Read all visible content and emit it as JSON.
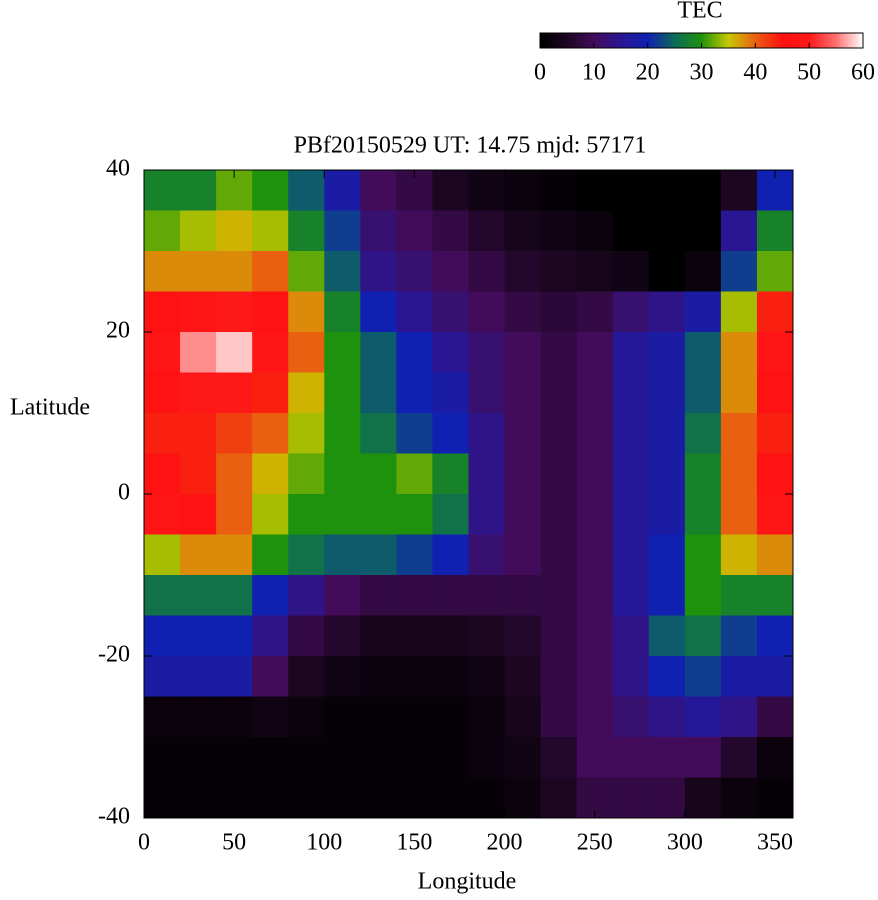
{
  "chart_data": {
    "type": "heatmap",
    "title": "PBf20150529  UT: 14.75  mjd: 57171",
    "x_label": "Longitude",
    "y_label": "Latitude",
    "colorbar_label": "TEC",
    "x": [
      10,
      30,
      50,
      70,
      90,
      110,
      130,
      150,
      170,
      190,
      210,
      230,
      250,
      270,
      290,
      310,
      330,
      350
    ],
    "y": [
      37.5,
      32.5,
      27.5,
      22.5,
      17.5,
      12.5,
      7.5,
      2.5,
      -2.5,
      -7.5,
      -12.5,
      -17.5,
      -22.5,
      -27.5,
      -32.5,
      -37.5
    ],
    "z": [
      [
        28,
        28,
        32,
        30,
        24,
        18,
        10,
        8,
        5,
        3,
        2,
        1,
        0,
        0,
        0,
        0,
        5,
        20
      ],
      [
        32,
        34,
        36,
        34,
        28,
        22,
        12,
        10,
        8,
        6,
        4,
        3,
        2,
        0,
        0,
        0,
        15,
        28
      ],
      [
        38,
        38,
        38,
        40,
        32,
        24,
        14,
        12,
        10,
        8,
        6,
        5,
        4,
        3,
        0,
        2,
        22,
        32
      ],
      [
        46,
        48,
        50,
        46,
        38,
        28,
        20,
        15,
        12,
        10,
        8,
        7,
        8,
        12,
        14,
        18,
        34,
        44
      ],
      [
        48,
        56,
        58,
        48,
        40,
        30,
        24,
        20,
        15,
        12,
        10,
        8,
        10,
        16,
        18,
        24,
        38,
        48
      ],
      [
        46,
        50,
        50,
        44,
        36,
        30,
        24,
        20,
        18,
        12,
        10,
        8,
        10,
        16,
        18,
        24,
        38,
        46
      ],
      [
        44,
        44,
        42,
        40,
        34,
        30,
        26,
        22,
        20,
        14,
        10,
        8,
        10,
        16,
        18,
        26,
        40,
        44
      ],
      [
        46,
        44,
        40,
        36,
        32,
        30,
        30,
        32,
        28,
        14,
        10,
        8,
        10,
        16,
        18,
        28,
        40,
        46
      ],
      [
        48,
        46,
        40,
        34,
        30,
        30,
        30,
        30,
        26,
        14,
        10,
        8,
        10,
        16,
        18,
        28,
        40,
        48
      ],
      [
        34,
        38,
        38,
        30,
        26,
        24,
        24,
        22,
        20,
        12,
        10,
        8,
        10,
        16,
        20,
        30,
        36,
        38
      ],
      [
        26,
        26,
        26,
        20,
        14,
        10,
        8,
        8,
        8,
        8,
        8,
        8,
        10,
        16,
        20,
        30,
        28,
        28
      ],
      [
        20,
        20,
        20,
        14,
        8,
        6,
        4,
        4,
        4,
        5,
        6,
        8,
        10,
        14,
        24,
        26,
        22,
        20
      ],
      [
        18,
        18,
        18,
        10,
        5,
        3,
        2,
        2,
        2,
        3,
        5,
        8,
        10,
        14,
        20,
        22,
        18,
        18
      ],
      [
        2,
        2,
        2,
        3,
        2,
        1,
        1,
        1,
        1,
        2,
        4,
        8,
        10,
        12,
        14,
        16,
        14,
        8
      ],
      [
        1,
        1,
        1,
        1,
        1,
        1,
        1,
        1,
        1,
        2,
        3,
        6,
        10,
        10,
        10,
        10,
        6,
        2
      ],
      [
        1,
        1,
        1,
        1,
        1,
        1,
        1,
        1,
        1,
        1,
        2,
        5,
        8,
        8,
        8,
        4,
        2,
        1
      ]
    ],
    "xlim": [
      0,
      360
    ],
    "ylim": [
      -40,
      40
    ],
    "xticks": [
      0,
      50,
      100,
      150,
      200,
      250,
      300,
      350
    ],
    "yticks": [
      -40,
      -20,
      0,
      20,
      40
    ],
    "clim": [
      0,
      60
    ],
    "cticks": [
      0,
      10,
      20,
      30,
      40,
      50,
      60
    ],
    "colormap": [
      "#000000",
      "#1c0622",
      "#420c5a",
      "#2a1692",
      "#1020b0",
      "#0e6a5a",
      "#1e920c",
      "#c8c800",
      "#e86010",
      "#ff1010",
      "#ff1818",
      "#ff7070",
      "#ffffff"
    ]
  }
}
